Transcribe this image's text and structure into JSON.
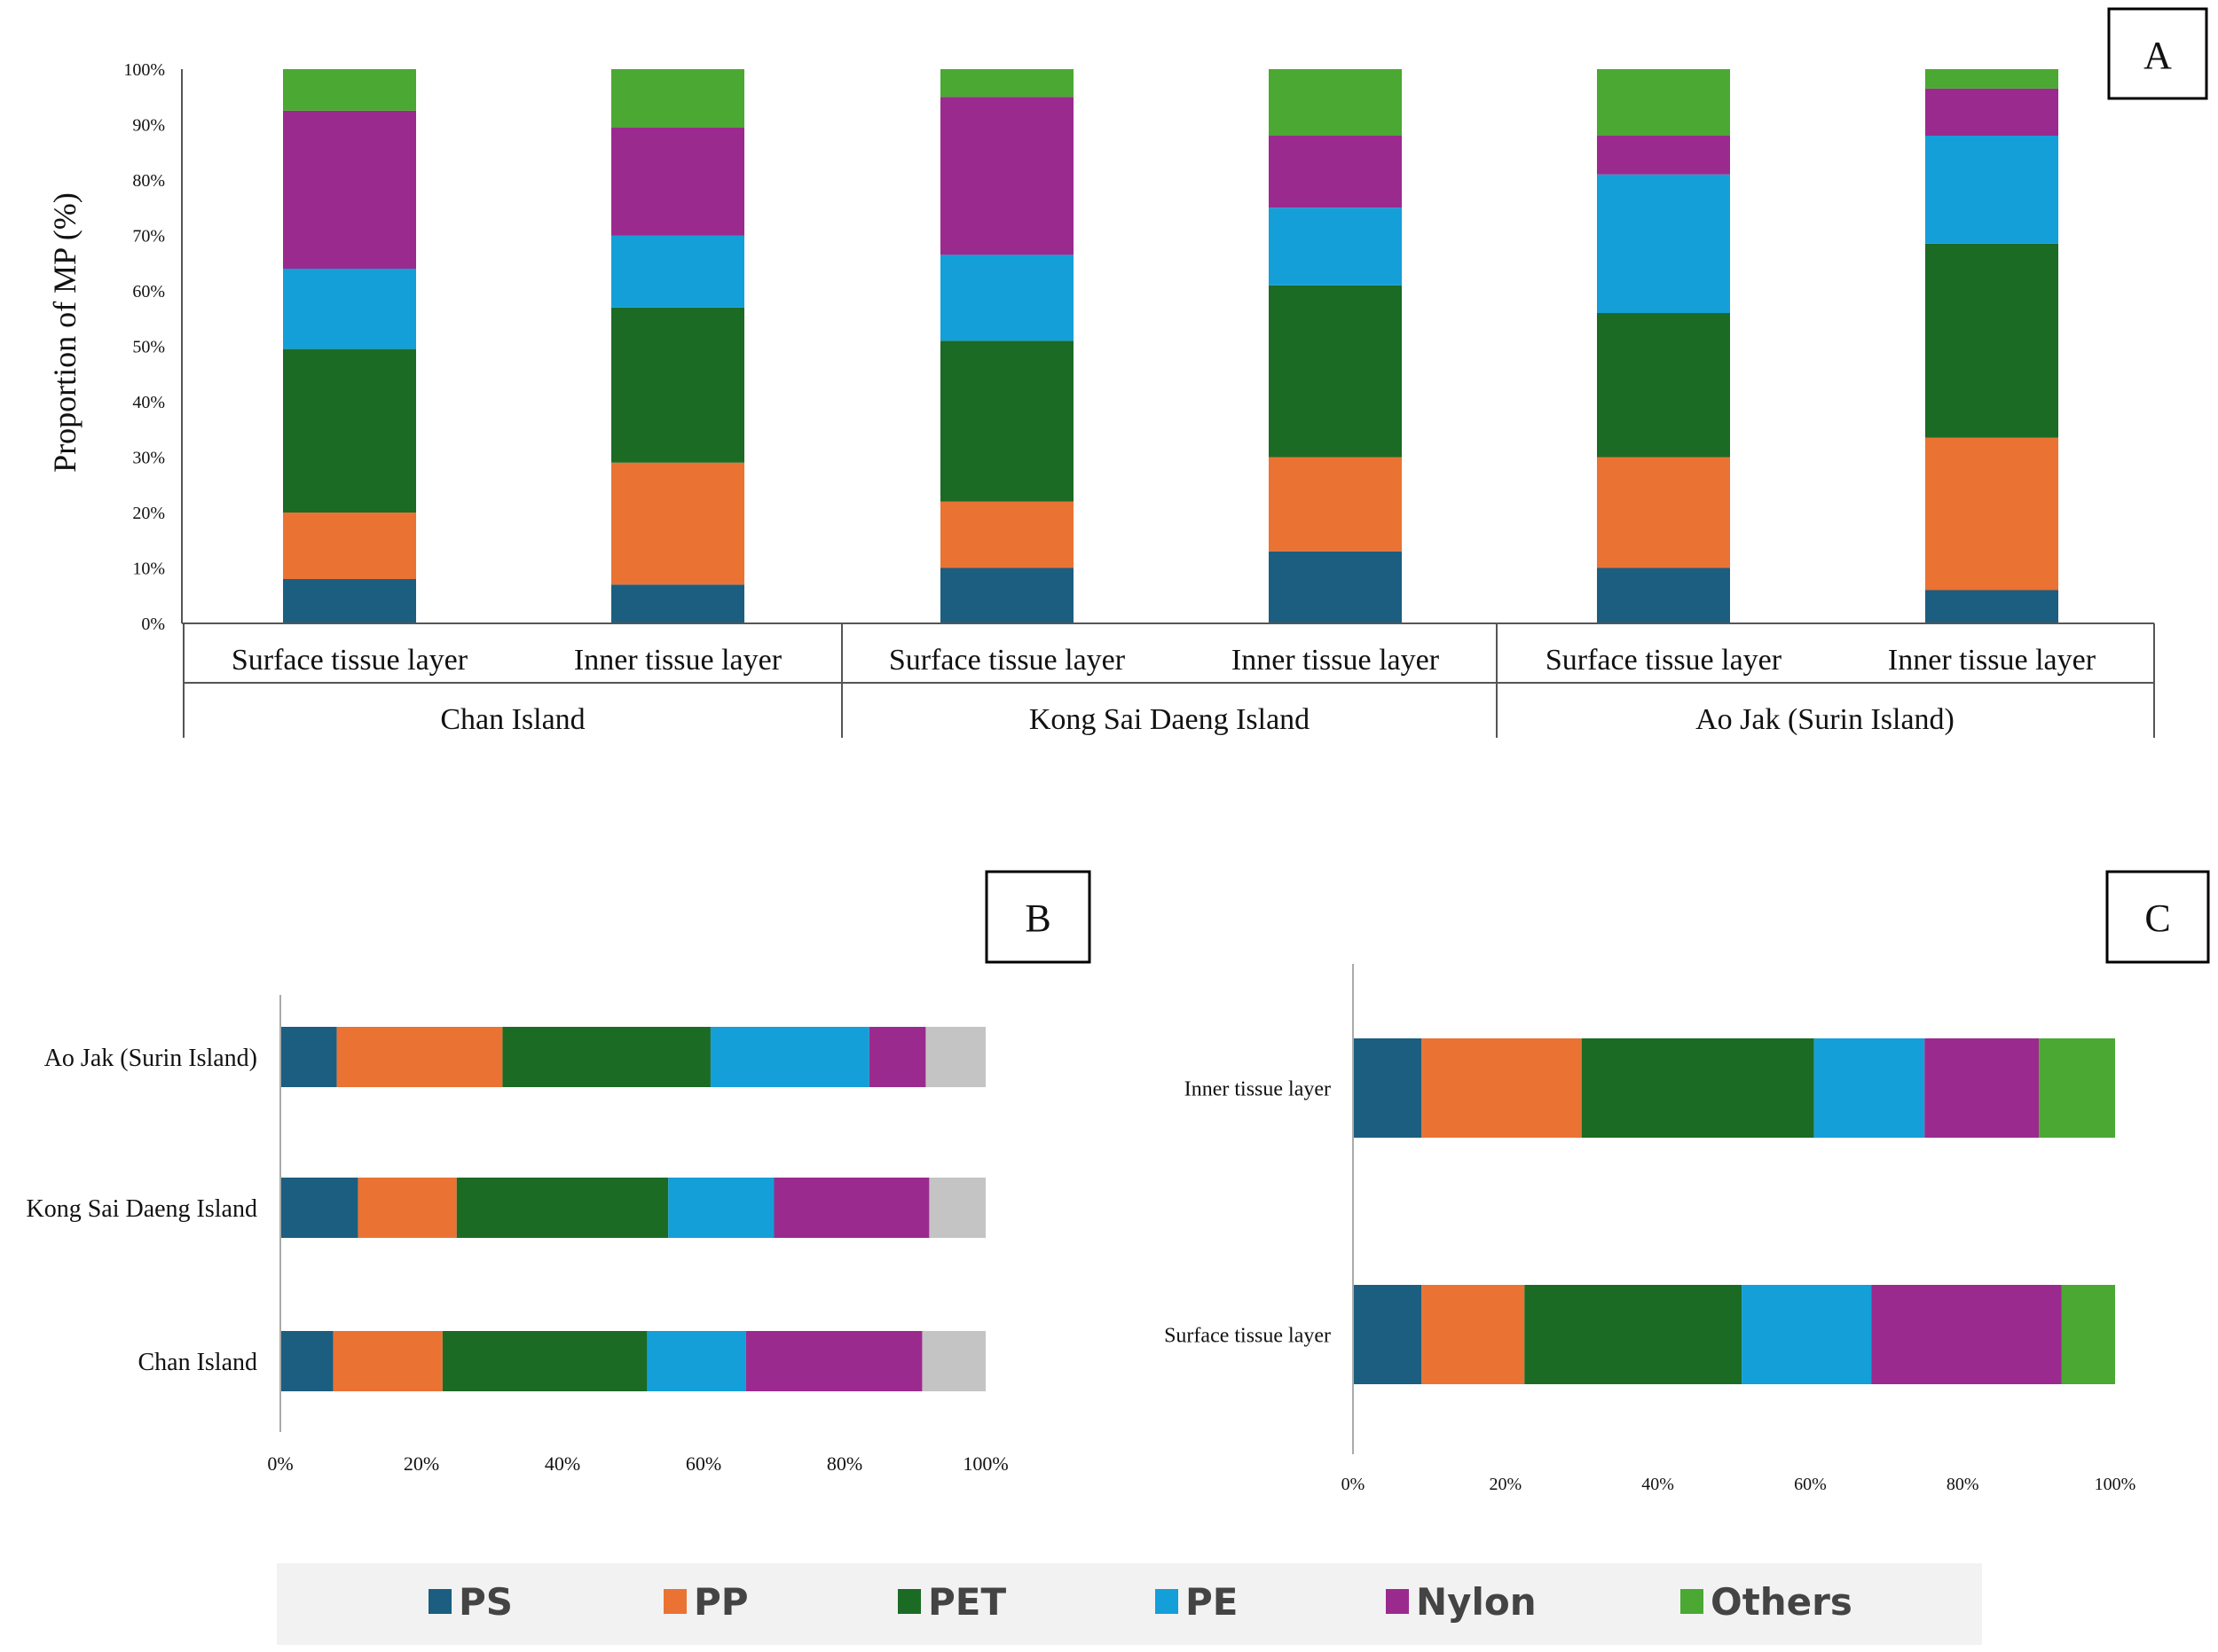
{
  "colors": {
    "PS": "#1b5e80",
    "PP": "#ea7334",
    "PET": "#1b6b25",
    "PE": "#149fd8",
    "Nylon": "#9b2a8e",
    "Others": "#4aa833",
    "Others_grey": "#c4c4c4"
  },
  "legend": {
    "items": [
      {
        "key": "PS",
        "label": "PS"
      },
      {
        "key": "PP",
        "label": "PP"
      },
      {
        "key": "PET",
        "label": "PET"
      },
      {
        "key": "PE",
        "label": "PE"
      },
      {
        "key": "Nylon",
        "label": "Nylon"
      },
      {
        "key": "Others",
        "label": "Others"
      }
    ]
  },
  "chart_data": [
    {
      "panel": "A",
      "type": "bar",
      "orientation": "vertical",
      "stacked": true,
      "ylabel": "Proportion of MP (%)",
      "ylim": [
        0,
        100
      ],
      "yticks": [
        "0%",
        "10%",
        "20%",
        "30%",
        "40%",
        "50%",
        "60%",
        "70%",
        "80%",
        "90%",
        "100%"
      ],
      "groups": [
        "Chan Island",
        "Kong Sai Daeng Island",
        "Ao Jak (Surin Island)"
      ],
      "categories": [
        "Surface tissue layer",
        "Inner tissue layer",
        "Surface tissue layer",
        "Inner tissue layer",
        "Surface tissue layer",
        "Inner tissue layer"
      ],
      "series": [
        {
          "name": "PS",
          "values": [
            8,
            7,
            10,
            13,
            10,
            6
          ]
        },
        {
          "name": "PP",
          "values": [
            12,
            22,
            12,
            17,
            20,
            27.5
          ]
        },
        {
          "name": "PET",
          "values": [
            29.5,
            28,
            29,
            31,
            26,
            35
          ]
        },
        {
          "name": "PE",
          "values": [
            14.5,
            13,
            15.5,
            14,
            25,
            19.5
          ]
        },
        {
          "name": "Nylon",
          "values": [
            28.5,
            19.5,
            28.5,
            13,
            7,
            8.5
          ]
        },
        {
          "name": "Others",
          "values": [
            7.5,
            10.5,
            5,
            12,
            12,
            3.5
          ]
        }
      ]
    },
    {
      "panel": "B",
      "type": "bar",
      "orientation": "horizontal",
      "stacked": true,
      "xlim": [
        0,
        100
      ],
      "xticks": [
        "0%",
        "20%",
        "40%",
        "60%",
        "80%",
        "100%"
      ],
      "categories": [
        "Ao Jak (Surin Island)",
        "Kong Sai Daeng Island",
        "Chan Island"
      ],
      "series": [
        {
          "name": "PS",
          "values": [
            8,
            11,
            7.5
          ]
        },
        {
          "name": "PP",
          "values": [
            23.5,
            14,
            15.5
          ]
        },
        {
          "name": "PET",
          "values": [
            29.5,
            30,
            29
          ]
        },
        {
          "name": "PE",
          "values": [
            22.5,
            15,
            14
          ]
        },
        {
          "name": "Nylon",
          "values": [
            8,
            22,
            25
          ]
        },
        {
          "name": "Others",
          "values": [
            8.5,
            8,
            9
          ]
        }
      ]
    },
    {
      "panel": "C",
      "type": "bar",
      "orientation": "horizontal",
      "stacked": true,
      "xlim": [
        0,
        100
      ],
      "xticks": [
        "0%",
        "20%",
        "40%",
        "60%",
        "80%",
        "100%"
      ],
      "categories": [
        "Inner tissue layer",
        "Surface tissue layer"
      ],
      "series": [
        {
          "name": "PS",
          "values": [
            9,
            9
          ]
        },
        {
          "name": "PP",
          "values": [
            21,
            13.5
          ]
        },
        {
          "name": "PET",
          "values": [
            30.5,
            28.5
          ]
        },
        {
          "name": "PE",
          "values": [
            14.5,
            17
          ]
        },
        {
          "name": "Nylon",
          "values": [
            15,
            25
          ]
        },
        {
          "name": "Others",
          "values": [
            10,
            7
          ]
        }
      ]
    }
  ],
  "panel_labels": {
    "A": "A",
    "B": "B",
    "C": "C"
  }
}
